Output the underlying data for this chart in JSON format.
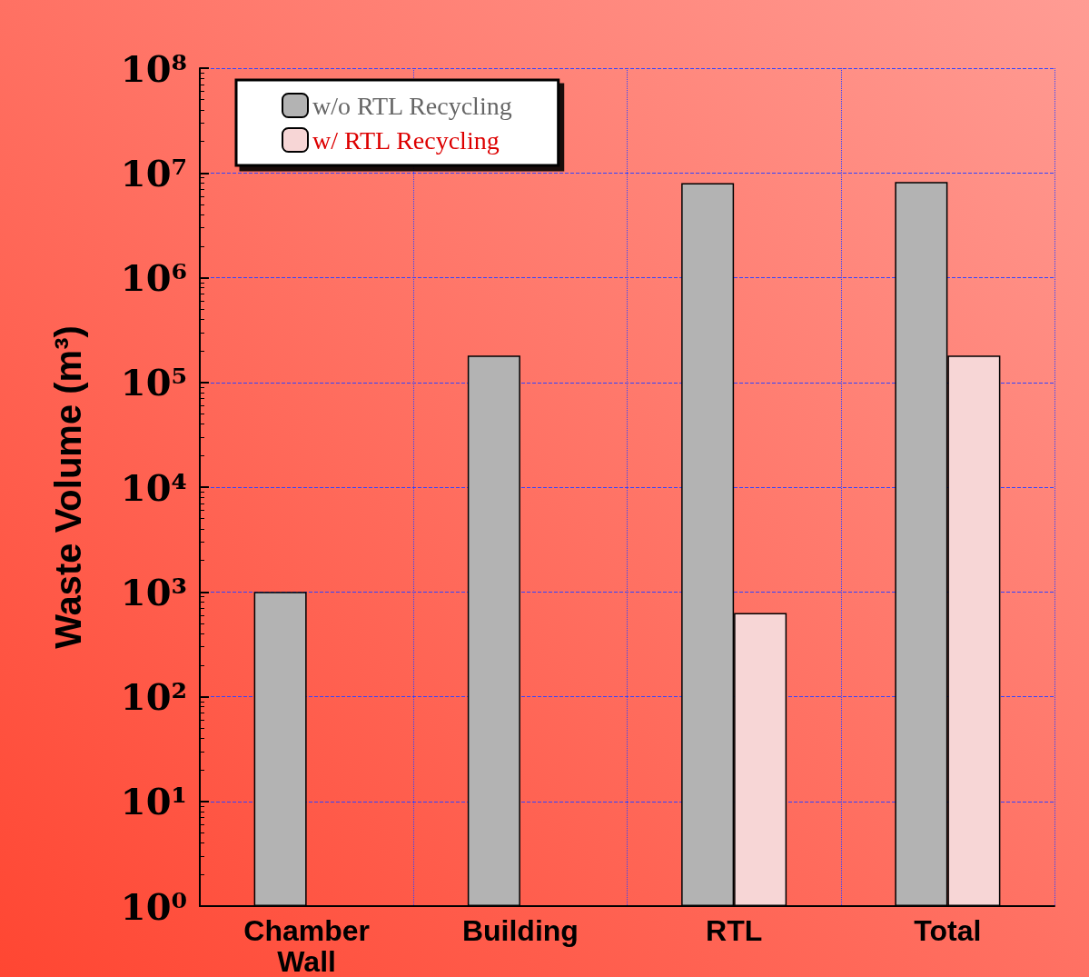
{
  "chart_data": {
    "type": "bar",
    "ylabel": "Waste Volume (m³)",
    "categories": [
      "Chamber\nWall",
      "Building",
      "RTL",
      "Total"
    ],
    "series": [
      {
        "name": "w/o RTL Recycling",
        "color": "#b3b3b3",
        "values": [
          1000,
          180000,
          8000000,
          8200000
        ]
      },
      {
        "name": "w/ RTL Recycling",
        "color": "#f7d6d6",
        "values": [
          null,
          null,
          630,
          180000
        ]
      }
    ],
    "log": "y",
    "ylim": [
      1,
      100000000
    ],
    "yticks": [
      {
        "value": 1,
        "label": "10⁰"
      },
      {
        "value": 10,
        "label": "10¹"
      },
      {
        "value": 100,
        "label": "10²"
      },
      {
        "value": 1000,
        "label": "10³"
      },
      {
        "value": 10000,
        "label": "10⁴"
      },
      {
        "value": 100000,
        "label": "10⁵"
      },
      {
        "value": 1000000,
        "label": "10⁶"
      },
      {
        "value": 10000000,
        "label": "10⁷"
      },
      {
        "value": 100000000,
        "label": "10⁸"
      }
    ],
    "grid": true,
    "legend": "top left"
  }
}
